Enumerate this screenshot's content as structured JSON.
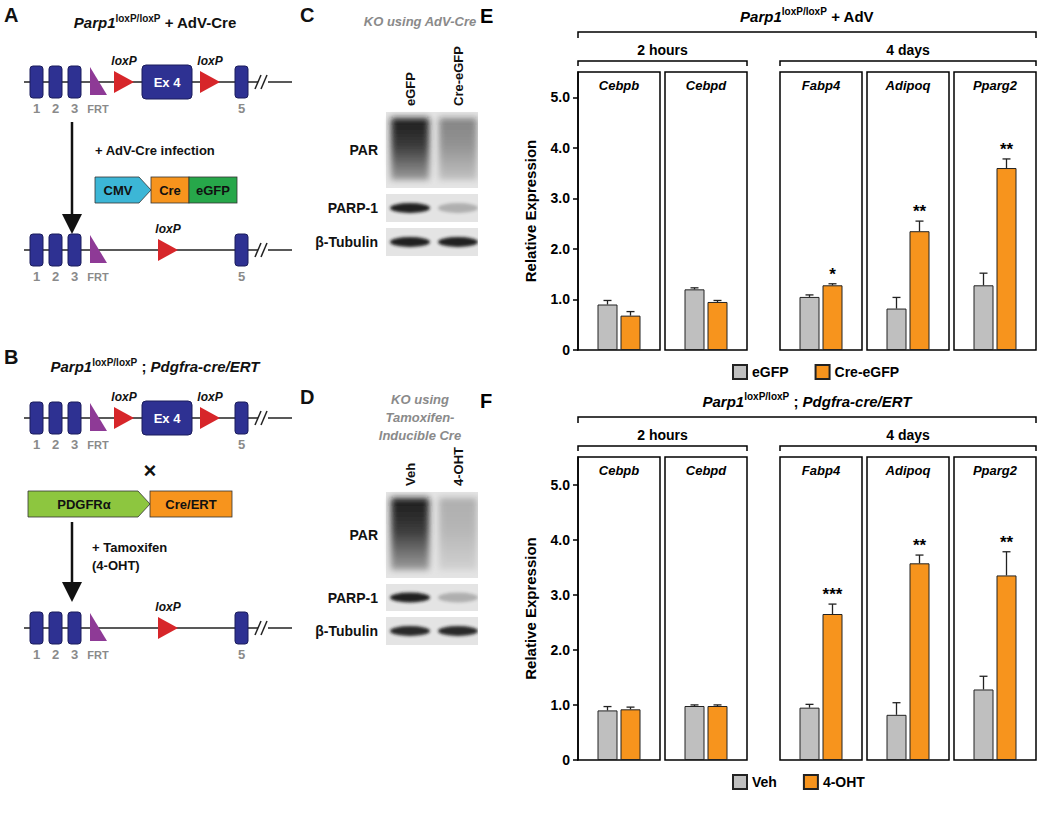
{
  "diagrams": [
    {
      "label": "A",
      "title": [
        {
          "text": "Parp1",
          "style": "italic"
        },
        {
          "text": "loxP/loxP",
          "style": "superscript"
        },
        {
          "text": " + AdV-Cre"
        }
      ],
      "allele": {
        "exon_labels": [
          "1",
          "2",
          "3",
          "5"
        ],
        "frt": "FRT",
        "loxp": "loxP",
        "floxed_exon": "Ex 4"
      },
      "step": [
        "+ AdV-Cre infection"
      ],
      "construct": {
        "promoter": "CMV",
        "parts": [
          "Cre",
          "eGFP"
        ]
      }
    },
    {
      "label": "B",
      "title": [
        {
          "text": "Parp1",
          "style": "italic"
        },
        {
          "text": "loxP/loxP",
          "style": "superscript"
        },
        {
          "text": " ; "
        },
        {
          "text": "Pdgfra-cre/ERT",
          "style": "italic"
        }
      ],
      "allele": {
        "exon_labels": [
          "1",
          "2",
          "3",
          "5"
        ],
        "frt": "FRT",
        "loxp": "loxP",
        "floxed_exon": "Ex 4"
      },
      "cross": "×",
      "step": [
        "+ Tamoxifen",
        "(4-OHT)"
      ],
      "construct": {
        "promoter": "PDGFRα",
        "parts": [
          "Cre/ERT"
        ]
      }
    }
  ],
  "blots": [
    {
      "label": "C",
      "title": [
        "KO using AdV-Cre"
      ],
      "lanes": [
        "eGFP",
        "Cre-eGFP"
      ],
      "rows": [
        "PAR",
        "PARP-1",
        "β-Tubulin"
      ]
    },
    {
      "label": "D",
      "title": [
        "KO using",
        "Tamoxifen-",
        "Inducible Cre"
      ],
      "lanes": [
        "Veh",
        "4-OHT"
      ],
      "rows": [
        "PAR",
        "PARP-1",
        "β-Tubulin"
      ]
    }
  ],
  "chart_panel_labels": [
    "E",
    "F"
  ],
  "chart_data": [
    {
      "type": "bar",
      "title": [
        {
          "text": "Parp1",
          "style": "italic"
        },
        {
          "text": "loxP/loxP",
          "style": "superscript"
        },
        {
          "text": " + AdV"
        }
      ],
      "y_label": "Relative Expression",
      "categories": [
        "Cebpb",
        "Cebpd",
        "Fabp4",
        "Adipoq",
        "Pparg2"
      ],
      "groups": [
        {
          "label": "2 hours",
          "categories": [
            "Cebpb",
            "Cebpd"
          ]
        },
        {
          "label": "4 days",
          "categories": [
            "Fabp4",
            "Adipoq",
            "Pparg2"
          ]
        }
      ],
      "series": [
        {
          "name": "eGFP",
          "color": "#bfbfbf",
          "values": [
            0.9,
            1.2,
            1.05,
            0.82,
            1.28
          ],
          "errors": [
            0.08,
            0.03,
            0.04,
            0.22,
            0.24
          ]
        },
        {
          "name": "Cre-eGFP",
          "color": "#f7941d",
          "values": [
            0.68,
            0.95,
            1.28,
            2.35,
            3.6
          ],
          "errors": [
            0.08,
            0.03,
            0.03,
            0.2,
            0.18
          ]
        }
      ],
      "annotations": [
        {
          "category": "Fabp4",
          "series": "Cre-eGFP",
          "text": "*"
        },
        {
          "category": "Adipoq",
          "series": "Cre-eGFP",
          "text": "**"
        },
        {
          "category": "Pparg2",
          "series": "Cre-eGFP",
          "text": "**"
        }
      ],
      "ylim": [
        0,
        5.5
      ],
      "yticks": [
        0,
        {
          "value": 1,
          "label": "1.0"
        },
        {
          "value": 2,
          "label": "2.0"
        },
        {
          "value": 3,
          "label": "3.0"
        },
        {
          "value": 4,
          "label": "4.0"
        },
        {
          "value": 5,
          "label": "5.0"
        }
      ],
      "grid": false,
      "legend": "bottom"
    },
    {
      "type": "bar",
      "title": [
        {
          "text": "Parp1",
          "style": "italic"
        },
        {
          "text": "loxP/loxP",
          "style": "superscript"
        },
        {
          "text": " ; "
        },
        {
          "text": "Pdgfra-cre/ERT",
          "style": "italic"
        }
      ],
      "y_label": "Relative Expression",
      "categories": [
        "Cebpb",
        "Cebpd",
        "Fabp4",
        "Adipoq",
        "Pparg2"
      ],
      "groups": [
        {
          "label": "2 hours",
          "categories": [
            "Cebpb",
            "Cebpd"
          ]
        },
        {
          "label": "4 days",
          "categories": [
            "Fabp4",
            "Adipoq",
            "Pparg2"
          ]
        }
      ],
      "series": [
        {
          "name": "Veh",
          "color": "#bfbfbf",
          "values": [
            0.9,
            0.98,
            0.95,
            0.82,
            1.28
          ],
          "errors": [
            0.07,
            0.02,
            0.06,
            0.22,
            0.24
          ]
        },
        {
          "name": "4-OHT",
          "color": "#f7941d",
          "values": [
            0.92,
            0.98,
            2.65,
            3.57,
            3.35
          ],
          "errors": [
            0.04,
            0.02,
            0.18,
            0.15,
            0.43
          ]
        }
      ],
      "annotations": [
        {
          "category": "Fabp4",
          "series": "4-OHT",
          "text": "***"
        },
        {
          "category": "Adipoq",
          "series": "4-OHT",
          "text": "**"
        },
        {
          "category": "Pparg2",
          "series": "4-OHT",
          "text": "**"
        }
      ],
      "ylim": [
        0,
        5.5
      ],
      "yticks": [
        0,
        {
          "value": 1,
          "label": "1.0"
        },
        {
          "value": 2,
          "label": "2.0"
        },
        {
          "value": 3,
          "label": "3.0"
        },
        {
          "value": 4,
          "label": "4.0"
        },
        {
          "value": 5,
          "label": "5.0"
        }
      ],
      "grid": false,
      "legend": "bottom"
    }
  ]
}
